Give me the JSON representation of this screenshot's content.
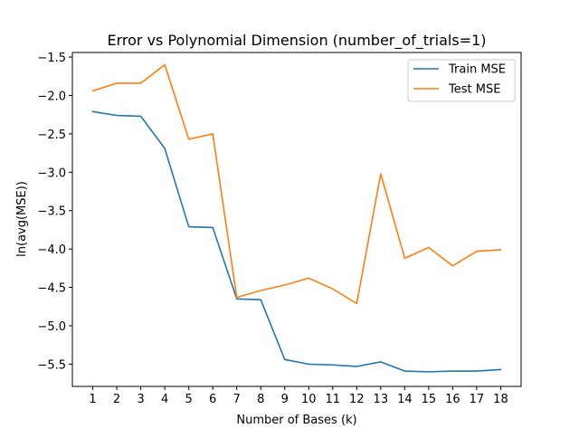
{
  "chart_data": {
    "type": "line",
    "title": "Error vs Polynomial Dimension (number_of_trials=1)",
    "xlabel": "Number of Bases (k)",
    "ylabel": "ln(avg(MSE))",
    "x": [
      1,
      2,
      3,
      4,
      5,
      6,
      7,
      8,
      9,
      10,
      11,
      12,
      13,
      14,
      15,
      16,
      17,
      18
    ],
    "xlim": [
      0.15,
      18.85
    ],
    "ylim": [
      -5.79,
      -1.44
    ],
    "yticks": [
      -1.5,
      -2.0,
      -2.5,
      -3.0,
      -3.5,
      -4.0,
      -4.5,
      -5.0,
      -5.5
    ],
    "grid": false,
    "legend_position": "top-right",
    "series": [
      {
        "name": "Train MSE",
        "color": "#1f77b4",
        "values": [
          -2.21,
          -2.26,
          -2.27,
          -2.69,
          -3.71,
          -3.72,
          -4.65,
          -4.66,
          -5.44,
          -5.5,
          -5.51,
          -5.53,
          -5.47,
          -5.59,
          -5.6,
          -5.59,
          -5.59,
          -5.57
        ]
      },
      {
        "name": "Test MSE",
        "color": "#ff7f0e",
        "values": [
          -1.94,
          -1.84,
          -1.84,
          -1.6,
          -2.57,
          -2.5,
          -4.63,
          -4.54,
          -4.47,
          -4.38,
          -4.52,
          -4.71,
          -3.02,
          -4.12,
          -3.98,
          -4.22,
          -4.03,
          -4.01
        ]
      }
    ]
  }
}
